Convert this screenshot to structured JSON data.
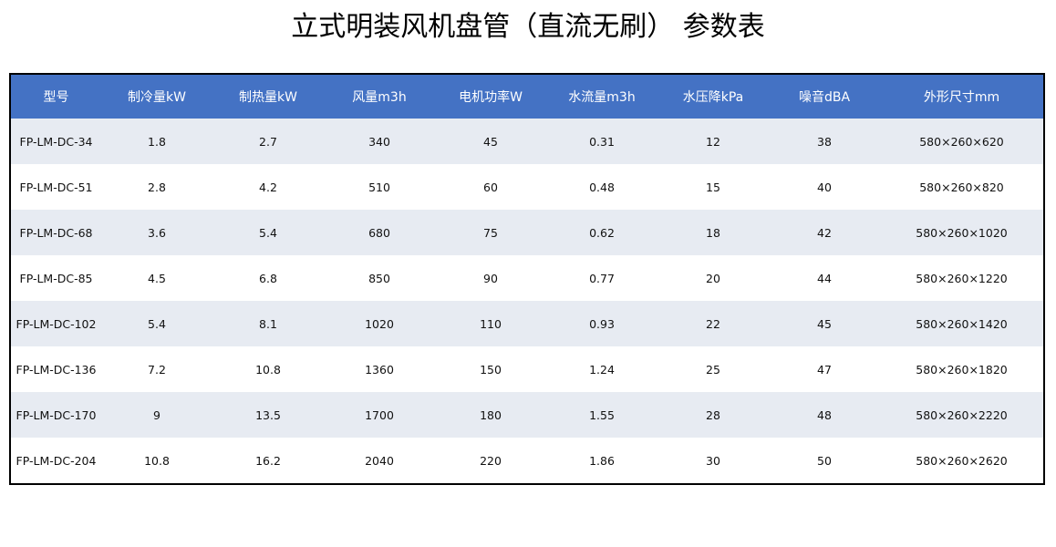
{
  "title": "立式明装风机盘管（直流无刷） 参数表",
  "colors": {
    "header_bg": "#4472C4",
    "stripe_bg": "#E7EBF2"
  },
  "table": {
    "headers": [
      "型号",
      "制冷量kW",
      "制热量kW",
      "风量m3h",
      "电机功率W",
      "水流量m3h",
      "水压降kPa",
      "噪音dBA",
      "外形尺寸mm"
    ],
    "rows": [
      [
        "FP-LM-DC-34",
        "1.8",
        "2.7",
        "340",
        "45",
        "0.31",
        "12",
        "38",
        "580×260×620"
      ],
      [
        "FP-LM-DC-51",
        "2.8",
        "4.2",
        "510",
        "60",
        "0.48",
        "15",
        "40",
        "580×260×820"
      ],
      [
        "FP-LM-DC-68",
        "3.6",
        "5.4",
        "680",
        "75",
        "0.62",
        "18",
        "42",
        "580×260×1020"
      ],
      [
        "FP-LM-DC-85",
        "4.5",
        "6.8",
        "850",
        "90",
        "0.77",
        "20",
        "44",
        "580×260×1220"
      ],
      [
        "FP-LM-DC-102",
        "5.4",
        "8.1",
        "1020",
        "110",
        "0.93",
        "22",
        "45",
        "580×260×1420"
      ],
      [
        "FP-LM-DC-136",
        "7.2",
        "10.8",
        "1360",
        "150",
        "1.24",
        "25",
        "47",
        "580×260×1820"
      ],
      [
        "FP-LM-DC-170",
        "9",
        "13.5",
        "1700",
        "180",
        "1.55",
        "28",
        "48",
        "580×260×2220"
      ],
      [
        "FP-LM-DC-204",
        "10.8",
        "16.2",
        "2040",
        "220",
        "1.86",
        "30",
        "50",
        "580×260×2620"
      ]
    ]
  }
}
